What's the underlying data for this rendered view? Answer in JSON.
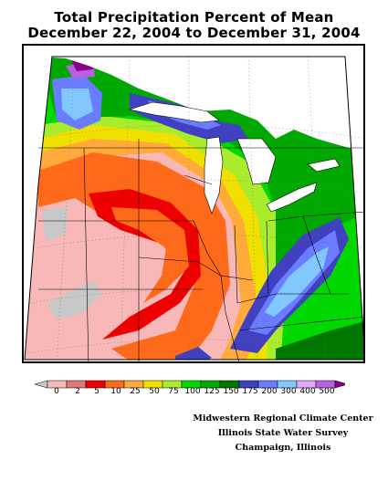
{
  "title": {
    "line1": "Total Precipitation Percent of Mean",
    "line2": "December 22, 2004 to December 31, 2004"
  },
  "legend": {
    "colors": [
      "#c8c8c8",
      "#f8b8b8",
      "#e07878",
      "#ee0000",
      "#ff6a1a",
      "#ffaa3a",
      "#f0e000",
      "#a8ec2c",
      "#00d800",
      "#00a800",
      "#007800",
      "#4040c0",
      "#6a7cff",
      "#80c8ff",
      "#e0a8f8",
      "#b860e0",
      "#8a008a"
    ],
    "labels": [
      "0",
      "2",
      "5",
      "10",
      "25",
      "50",
      "75",
      "100",
      "125",
      "150",
      "175",
      "200",
      "300",
      "400",
      "500"
    ]
  },
  "credits": {
    "line1": "Midwestern Regional Climate Center",
    "line2": "Illinois State Water Survey",
    "line3": "Champaign, Illinois"
  }
}
